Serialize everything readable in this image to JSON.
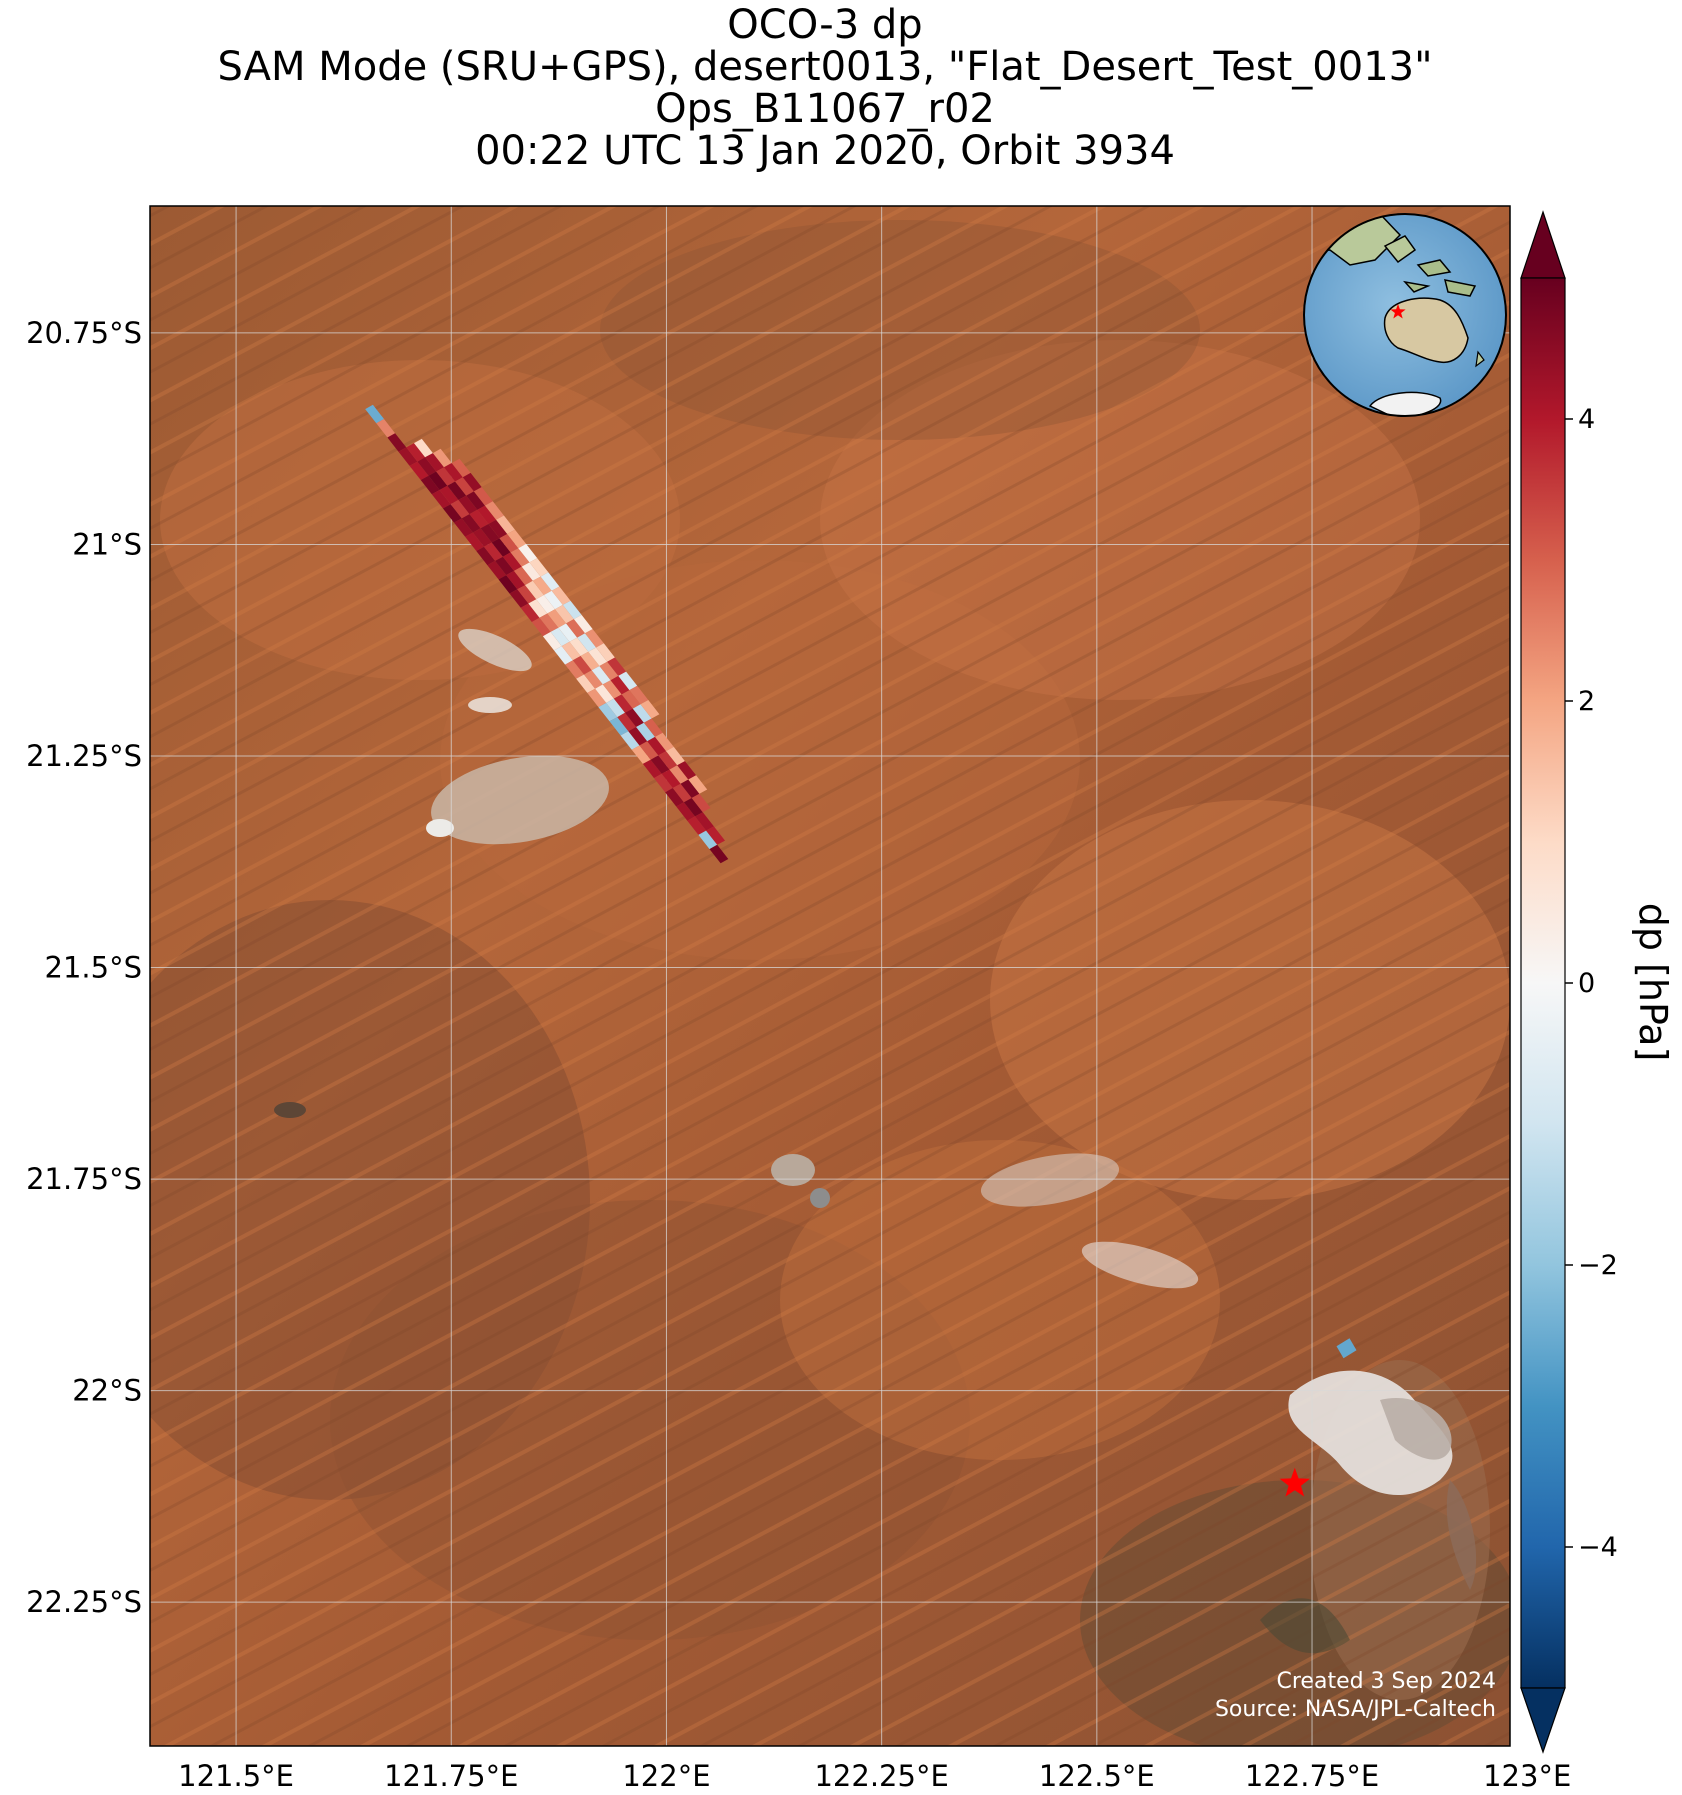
{
  "title": {
    "line1": "OCO-3 dp",
    "line2": "SAM Mode (SRU+GPS), desert0013, \"Flat_Desert_Test_0013\"",
    "line3": "Ops_B11067_r02",
    "line4": "00:22 UTC 13 Jan 2020, Orbit 3934"
  },
  "map": {
    "background": "satellite imagery (Western Australian desert)",
    "lon_range": [
      121.4,
      122.98
    ],
    "lat_range": [
      -22.42,
      -20.6
    ],
    "x_ticks": [
      {
        "value": 121.5,
        "label": "121.5°E"
      },
      {
        "value": 121.75,
        "label": "121.75°E"
      },
      {
        "value": 122.0,
        "label": "122°E"
      },
      {
        "value": 122.25,
        "label": "122.25°E"
      },
      {
        "value": 122.5,
        "label": "122.5°E"
      },
      {
        "value": 122.75,
        "label": "122.75°E"
      },
      {
        "value": 123.0,
        "label": "123°E"
      }
    ],
    "y_ticks": [
      {
        "value": -20.75,
        "label": "20.75°S"
      },
      {
        "value": -21.0,
        "label": "21°S"
      },
      {
        "value": -21.25,
        "label": "21.25°S"
      },
      {
        "value": -21.5,
        "label": "21.5°S"
      },
      {
        "value": -21.75,
        "label": "21.75°S"
      },
      {
        "value": -22.0,
        "label": "22°S"
      },
      {
        "value": -22.25,
        "label": "22.25°S"
      }
    ],
    "grid": true,
    "target_marker": {
      "lon": 122.73,
      "lat": -22.11,
      "shape": "star",
      "color": "#ff0000"
    },
    "credit_line1": "Created 3 Sep 2024",
    "credit_line2": "Source: NASA/JPL-Caltech",
    "inset_globe": {
      "center_region": "Australia / Maritime Continent",
      "marker_color": "#ff0000"
    }
  },
  "colorbar": {
    "label": "dp [hPa]",
    "colormap": "RdBu_r",
    "vmin": -5,
    "vmax": 5,
    "extend": "both",
    "ticks": [
      {
        "value": 4,
        "label": "4"
      },
      {
        "value": 2,
        "label": "2"
      },
      {
        "value": 0,
        "label": "0"
      },
      {
        "value": -2,
        "label": "−2"
      },
      {
        "value": -4,
        "label": "−4"
      }
    ]
  },
  "chart_data": {
    "type": "heatmap",
    "swath": {
      "start": {
        "lon": 121.65,
        "lat": -20.84
      },
      "end": {
        "lon": 122.05,
        "lat": -21.36
      },
      "across_track_shift_lon": 0.009,
      "footprints": [
        {
          "along": 0,
          "across": 0,
          "dp": -2.5
        },
        {
          "along": 1,
          "across": 0,
          "dp": 2.5
        },
        {
          "along": 2,
          "across": 0,
          "dp": 4.6
        },
        {
          "along": 3,
          "across": 0,
          "dp": 4.3
        },
        {
          "along": 4,
          "across": 0,
          "dp": 4.0
        },
        {
          "along": 5,
          "across": 0,
          "dp": 4.7
        },
        {
          "along": 6,
          "across": 0,
          "dp": 4.2
        },
        {
          "along": 7,
          "across": 0,
          "dp": 4.8
        },
        {
          "along": 8,
          "across": 0,
          "dp": 4.4
        },
        {
          "along": 9,
          "across": 0,
          "dp": 4.1
        },
        {
          "along": 10,
          "across": 0,
          "dp": 4.6
        },
        {
          "along": 11,
          "across": 0,
          "dp": 4.3
        },
        {
          "along": 12,
          "across": 0,
          "dp": 4.9
        },
        {
          "along": 13,
          "across": 0,
          "dp": 4.5
        },
        {
          "along": 14,
          "across": 0,
          "dp": 3.8
        },
        {
          "along": 15,
          "across": 0,
          "dp": 3.2
        },
        {
          "along": 16,
          "across": 0,
          "dp": 0.4
        },
        {
          "along": 17,
          "across": 0,
          "dp": -0.5
        },
        {
          "along": 18,
          "across": 0,
          "dp": 2.6
        },
        {
          "along": 19,
          "across": 0,
          "dp": 1.2
        },
        {
          "along": 20,
          "across": 0,
          "dp": 2.2
        },
        {
          "along": 21,
          "across": 0,
          "dp": -1.8
        },
        {
          "along": 22,
          "across": 0,
          "dp": -2.3
        },
        {
          "along": 23,
          "across": 0,
          "dp": -1.4
        },
        {
          "along": 24,
          "across": 0,
          "dp": 2.0
        },
        {
          "along": 25,
          "across": 0,
          "dp": 4.1
        },
        {
          "along": 26,
          "across": 0,
          "dp": 3.6
        },
        {
          "along": 27,
          "across": 0,
          "dp": 4.5
        },
        {
          "along": 28,
          "across": 0,
          "dp": 4.2
        },
        {
          "along": 29,
          "across": 0,
          "dp": 3.9
        },
        {
          "along": 30,
          "across": 0,
          "dp": -1.9
        },
        {
          "along": 31,
          "across": 0,
          "dp": 4.8
        },
        {
          "along": 3,
          "across": 1,
          "dp": 3.9
        },
        {
          "along": 4,
          "across": 1,
          "dp": 4.5
        },
        {
          "along": 5,
          "across": 1,
          "dp": 4.9
        },
        {
          "along": 6,
          "across": 1,
          "dp": 4.1
        },
        {
          "along": 7,
          "across": 1,
          "dp": 3.5
        },
        {
          "along": 8,
          "across": 1,
          "dp": 4.6
        },
        {
          "along": 9,
          "across": 1,
          "dp": 4.3
        },
        {
          "along": 10,
          "across": 1,
          "dp": 3.8
        },
        {
          "along": 11,
          "across": 1,
          "dp": 4.7
        },
        {
          "along": 12,
          "across": 1,
          "dp": 4.2
        },
        {
          "along": 13,
          "across": 1,
          "dp": 3.4
        },
        {
          "along": 14,
          "across": 1,
          "dp": 0.8
        },
        {
          "along": 15,
          "across": 1,
          "dp": 2.7
        },
        {
          "along": 16,
          "across": 1,
          "dp": -0.8
        },
        {
          "along": 17,
          "across": 1,
          "dp": 1.5
        },
        {
          "along": 18,
          "across": 1,
          "dp": 3.3
        },
        {
          "along": 19,
          "across": 1,
          "dp": 2.4
        },
        {
          "along": 20,
          "across": 1,
          "dp": 0.6
        },
        {
          "along": 21,
          "across": 1,
          "dp": -1.2
        },
        {
          "along": 22,
          "across": 1,
          "dp": 3.7
        },
        {
          "along": 23,
          "across": 1,
          "dp": 4.4
        },
        {
          "along": 24,
          "across": 1,
          "dp": 3.1
        },
        {
          "along": 25,
          "across": 1,
          "dp": 4.6
        },
        {
          "along": 26,
          "across": 1,
          "dp": 4.0
        },
        {
          "along": 27,
          "across": 1,
          "dp": 3.5
        },
        {
          "along": 28,
          "across": 1,
          "dp": 4.8
        },
        {
          "along": 29,
          "across": 1,
          "dp": 4.2
        },
        {
          "along": 30,
          "across": 1,
          "dp": 3.9
        },
        {
          "along": 3,
          "across": 2,
          "dp": 1.0
        },
        {
          "along": 4,
          "across": 2,
          "dp": 4.2
        },
        {
          "along": 5,
          "across": 2,
          "dp": 3.6
        },
        {
          "along": 6,
          "across": 2,
          "dp": 4.8
        },
        {
          "along": 7,
          "across": 2,
          "dp": 4.4
        },
        {
          "along": 8,
          "across": 2,
          "dp": 3.9
        },
        {
          "along": 9,
          "across": 2,
          "dp": 4.6
        },
        {
          "along": 10,
          "across": 2,
          "dp": 4.9
        },
        {
          "along": 11,
          "across": 2,
          "dp": 4.1
        },
        {
          "along": 12,
          "across": 2,
          "dp": 2.9
        },
        {
          "along": 13,
          "across": 2,
          "dp": 1.3
        },
        {
          "along": 14,
          "across": 2,
          "dp": 0.3
        },
        {
          "along": 15,
          "across": 2,
          "dp": 2.1
        },
        {
          "along": 16,
          "across": 2,
          "dp": -0.4
        },
        {
          "along": 17,
          "across": 2,
          "dp": 0.9
        },
        {
          "along": 18,
          "across": 2,
          "dp": 1.8
        },
        {
          "along": 19,
          "across": 2,
          "dp": -0.7
        },
        {
          "along": 20,
          "across": 2,
          "dp": 2.3
        },
        {
          "along": 21,
          "across": 2,
          "dp": 3.8
        },
        {
          "along": 22,
          "across": 2,
          "dp": 4.5
        },
        {
          "along": 23,
          "across": 2,
          "dp": -1.6
        },
        {
          "along": 24,
          "across": 2,
          "dp": 4.1
        },
        {
          "along": 25,
          "across": 2,
          "dp": 3.6
        },
        {
          "along": 26,
          "across": 2,
          "dp": 2.4
        },
        {
          "along": 27,
          "across": 2,
          "dp": 4.7
        },
        {
          "along": 28,
          "across": 2,
          "dp": 3.3
        },
        {
          "along": 4,
          "across": 3,
          "dp": 2.2
        },
        {
          "along": 5,
          "across": 3,
          "dp": 4.1
        },
        {
          "along": 6,
          "across": 3,
          "dp": 3.4
        },
        {
          "along": 7,
          "across": 3,
          "dp": 4.7
        },
        {
          "along": 8,
          "across": 3,
          "dp": 4.0
        },
        {
          "along": 9,
          "across": 3,
          "dp": 4.5
        },
        {
          "along": 10,
          "across": 3,
          "dp": 3.2
        },
        {
          "along": 11,
          "across": 3,
          "dp": 2.6
        },
        {
          "along": 12,
          "across": 3,
          "dp": 0.5
        },
        {
          "along": 13,
          "across": 3,
          "dp": 1.9
        },
        {
          "along": 14,
          "across": 3,
          "dp": -0.3
        },
        {
          "along": 15,
          "across": 3,
          "dp": 1.4
        },
        {
          "along": 16,
          "across": 3,
          "dp": 2.8
        },
        {
          "along": 17,
          "across": 3,
          "dp": -1.0
        },
        {
          "along": 18,
          "across": 3,
          "dp": 0.7
        },
        {
          "along": 19,
          "across": 3,
          "dp": 2.5
        },
        {
          "along": 20,
          "across": 3,
          "dp": 3.9
        },
        {
          "along": 21,
          "across": 3,
          "dp": 2.9
        },
        {
          "along": 22,
          "across": 3,
          "dp": -1.3
        },
        {
          "along": 23,
          "across": 3,
          "dp": 3.0
        },
        {
          "along": 24,
          "across": 3,
          "dp": 2.2
        },
        {
          "along": 25,
          "across": 3,
          "dp": 1.6
        },
        {
          "along": 26,
          "across": 3,
          "dp": 4.3
        },
        {
          "along": 27,
          "across": 3,
          "dp": 2.0
        },
        {
          "along": 5,
          "across": 4,
          "dp": 3.0
        },
        {
          "along": 6,
          "across": 4,
          "dp": 4.4
        },
        {
          "along": 7,
          "across": 4,
          "dp": 3.1
        },
        {
          "along": 8,
          "across": 4,
          "dp": 2.4
        },
        {
          "along": 9,
          "across": 4,
          "dp": 1.7
        },
        {
          "along": 10,
          "across": 4,
          "dp": 2.0
        },
        {
          "along": 11,
          "across": 4,
          "dp": 0.2
        },
        {
          "along": 12,
          "across": 4,
          "dp": 1.1
        },
        {
          "along": 13,
          "across": 4,
          "dp": -0.6
        },
        {
          "along": 14,
          "across": 4,
          "dp": 1.6
        },
        {
          "along": 15,
          "across": 4,
          "dp": -1.1
        },
        {
          "along": 16,
          "across": 4,
          "dp": 0.4
        },
        {
          "along": 17,
          "across": 4,
          "dp": 2.3
        },
        {
          "along": 18,
          "across": 4,
          "dp": 1.2
        },
        {
          "along": 19,
          "across": 4,
          "dp": 3.6
        },
        {
          "along": 20,
          "across": 4,
          "dp": -0.9
        },
        {
          "along": 21,
          "across": 4,
          "dp": 2.7
        },
        {
          "along": 22,
          "across": 4,
          "dp": 1.9
        }
      ]
    },
    "isolated_footprints": [
      {
        "lon": 122.79,
        "lat": -21.95,
        "dp": -2.6
      }
    ]
  }
}
